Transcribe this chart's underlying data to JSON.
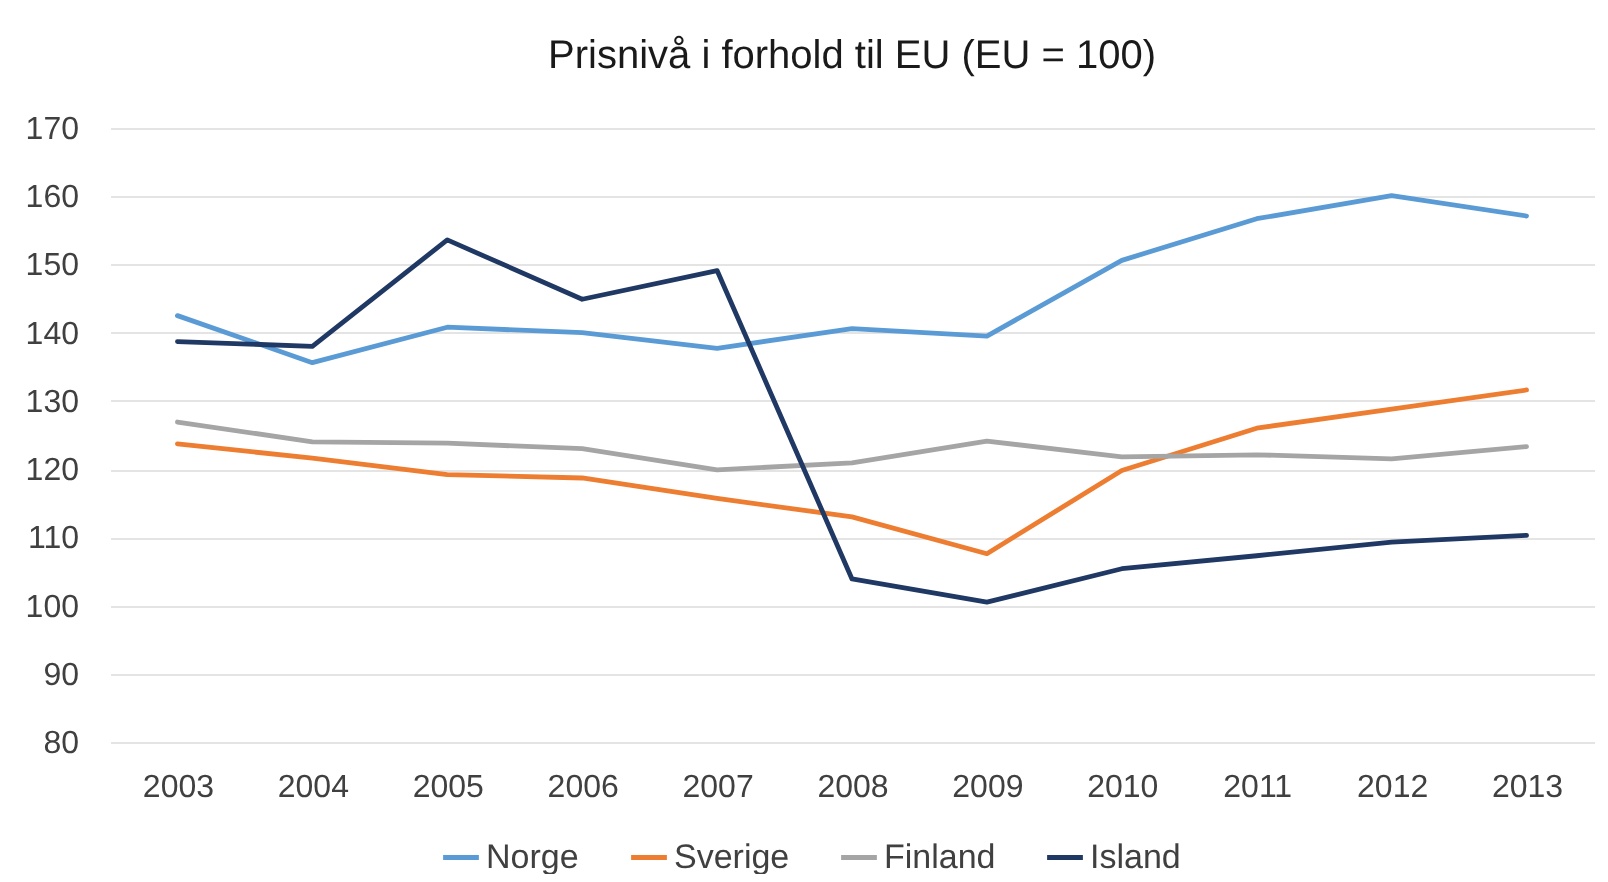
{
  "chart_data": {
    "type": "line",
    "title": "Prisnivå i forhold til EU (EU = 100)",
    "categories": [
      "2003",
      "2004",
      "2005",
      "2006",
      "2007",
      "2008",
      "2009",
      "2010",
      "2011",
      "2012",
      "2013"
    ],
    "series": [
      {
        "name": "Norge",
        "color": "#5b9bd5",
        "values": [
          142.5,
          135.6,
          140.8,
          140.0,
          137.7,
          140.6,
          139.5,
          150.6,
          156.7,
          160.1,
          157.1
        ]
      },
      {
        "name": "Sverige",
        "color": "#ed7d31",
        "values": [
          123.7,
          121.6,
          119.2,
          118.7,
          115.7,
          113.0,
          107.6,
          119.8,
          126.0,
          128.8,
          131.6
        ]
      },
      {
        "name": "Finland",
        "color": "#a5a5a5",
        "values": [
          126.9,
          124.0,
          123.8,
          123.0,
          119.9,
          120.9,
          124.1,
          121.8,
          122.1,
          121.5,
          123.3
        ]
      },
      {
        "name": "Island",
        "color": "#1f3864",
        "values": [
          138.7,
          138.0,
          153.6,
          144.9,
          149.1,
          103.9,
          100.5,
          105.4,
          107.3,
          109.3,
          110.3
        ]
      }
    ],
    "ylim": [
      80,
      170
    ],
    "yticks": [
      80,
      90,
      100,
      110,
      120,
      130,
      140,
      150,
      160,
      170
    ],
    "grid": "y",
    "legend": "bottom",
    "line_style": "solid"
  }
}
